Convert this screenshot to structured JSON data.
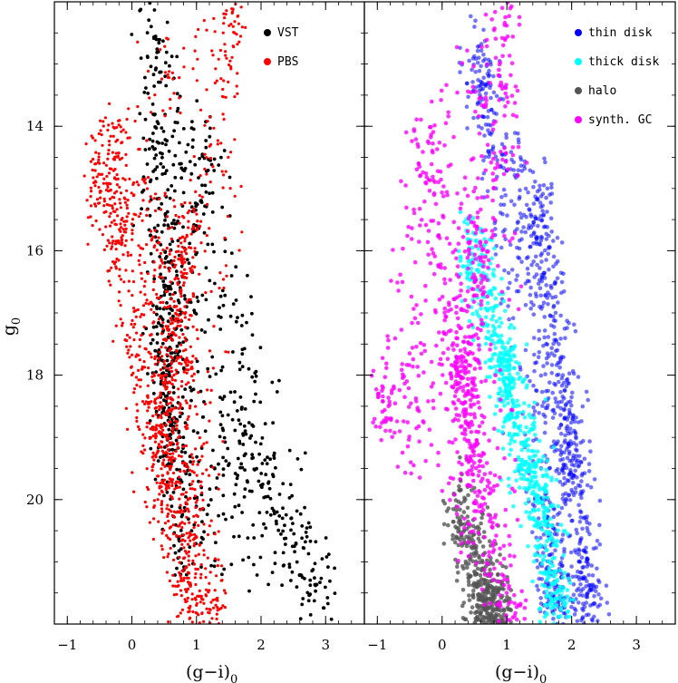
{
  "chart_data": [
    {
      "type": "scatter",
      "panel": "left",
      "xlabel": "(g−i)",
      "xlabel_sub": "0",
      "ylabel": "g",
      "ylabel_sub": "0",
      "xlim": [
        -1.2,
        3.6
      ],
      "ylim": [
        22.0,
        12.0
      ],
      "y_inverted": true,
      "xticks": [
        -1,
        0,
        1,
        2,
        3
      ],
      "yticks": [
        14,
        16,
        18,
        20
      ],
      "legend_position": "top-right",
      "series": [
        {
          "name": "VST",
          "color": "#000000",
          "marker_size": "medium",
          "anchors": [
            {
              "x": 0.25,
              "y": 12.2
            },
            {
              "x": 0.4,
              "y": 14.0
            },
            {
              "x": 0.55,
              "y": 16.0
            },
            {
              "x": 0.45,
              "y": 17.5
            },
            {
              "x": 0.5,
              "y": 18.5
            },
            {
              "x": 0.6,
              "y": 19.5
            },
            {
              "x": 0.85,
              "y": 21.0
            },
            {
              "x": 2.0,
              "y": 19.5
            },
            {
              "x": 2.6,
              "y": 21.0
            },
            {
              "x": 3.0,
              "y": 21.5
            },
            {
              "x": 1.2,
              "y": 14.5
            }
          ]
        },
        {
          "name": "PBS",
          "color": "#ff0000",
          "marker_size": "small",
          "anchors": [
            {
              "x": -0.3,
              "y": 14.3
            },
            {
              "x": -0.55,
              "y": 15.0
            },
            {
              "x": 0.8,
              "y": 16.0
            },
            {
              "x": 0.7,
              "y": 17.5
            },
            {
              "x": 0.35,
              "y": 18.5
            },
            {
              "x": 0.45,
              "y": 20.0
            },
            {
              "x": 0.9,
              "y": 21.5
            },
            {
              "x": 1.3,
              "y": 22.0
            },
            {
              "x": 1.6,
              "y": 12.0
            }
          ]
        }
      ]
    },
    {
      "type": "scatter",
      "panel": "right",
      "xlabel": "(g−i)",
      "xlabel_sub": "0",
      "xlim": [
        -1.2,
        3.6
      ],
      "ylim": [
        22.0,
        12.0
      ],
      "y_inverted": true,
      "xticks": [
        -1,
        0,
        1,
        2,
        3
      ],
      "yticks": [
        14,
        16,
        18,
        20
      ],
      "legend_position": "top-right",
      "series": [
        {
          "name": "thin disk",
          "color": "#0000ff",
          "anchors": [
            {
              "x": 0.5,
              "y": 13.0
            },
            {
              "x": 1.5,
              "y": 15.5
            },
            {
              "x": 2.0,
              "y": 19.0
            },
            {
              "x": 2.3,
              "y": 21.5
            },
            {
              "x": 1.7,
              "y": 21.8
            }
          ]
        },
        {
          "name": "thick disk",
          "color": "#00ffff",
          "anchors": [
            {
              "x": 0.5,
              "y": 16.0
            },
            {
              "x": 1.0,
              "y": 18.0
            },
            {
              "x": 1.5,
              "y": 20.0
            },
            {
              "x": 1.8,
              "y": 21.8
            }
          ]
        },
        {
          "name": "halo",
          "color": "#555555",
          "anchors": [
            {
              "x": 0.3,
              "y": 20.3
            },
            {
              "x": 0.6,
              "y": 21.8
            },
            {
              "x": 0.9,
              "y": 21.8
            }
          ]
        },
        {
          "name": "synth. GC",
          "color": "#ff00ff",
          "anchors": [
            {
              "x": -0.3,
              "y": 14.3
            },
            {
              "x": -0.9,
              "y": 18.5
            },
            {
              "x": 0.3,
              "y": 17.7
            },
            {
              "x": 0.6,
              "y": 16.0
            },
            {
              "x": 0.3,
              "y": 18.5
            },
            {
              "x": 0.5,
              "y": 20.0
            },
            {
              "x": 1.1,
              "y": 21.8
            },
            {
              "x": 1.05,
              "y": 12.0
            }
          ]
        }
      ]
    }
  ]
}
